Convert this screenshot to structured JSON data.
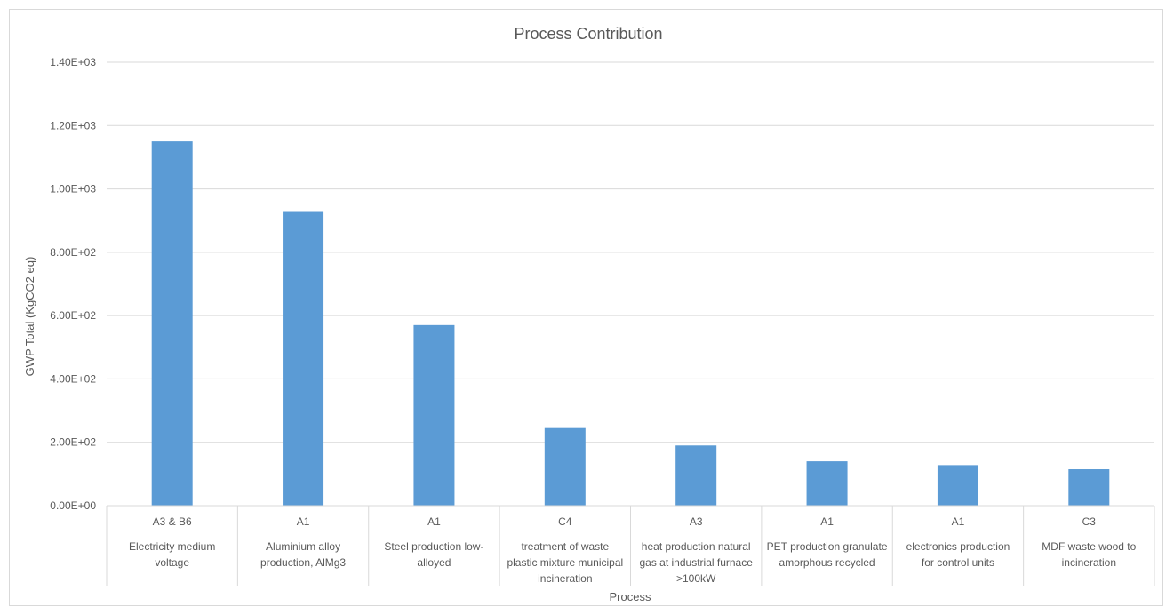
{
  "chart_data": {
    "type": "bar",
    "title": "Process Contribution",
    "xlabel": "Process",
    "ylabel": "GWP Total (KgCO2 eq)",
    "ylim": [
      0,
      1400
    ],
    "yticks": [
      "0.00E+00",
      "2.00E+02",
      "4.00E+02",
      "6.00E+02",
      "8.00E+02",
      "1.00E+03",
      "1.20E+03",
      "1.40E+03"
    ],
    "grid": true,
    "bar_color": "#5b9bd5",
    "categories": [
      {
        "stage": "A3 & B6",
        "name": [
          "Electricity medium",
          "voltage"
        ]
      },
      {
        "stage": "A1",
        "name": [
          "Aluminium alloy",
          "production, AlMg3"
        ]
      },
      {
        "stage": "A1",
        "name": [
          "Steel production low-",
          "alloyed"
        ]
      },
      {
        "stage": "C4",
        "name": [
          "treatment of waste",
          "plastic mixture municipal",
          "incineration"
        ]
      },
      {
        "stage": "A3",
        "name": [
          "heat production natural",
          "gas at industrial furnace",
          ">100kW"
        ]
      },
      {
        "stage": "A1",
        "name": [
          "PET production granulate",
          "amorphous recycled"
        ]
      },
      {
        "stage": "A1",
        "name": [
          "electronics production",
          "for control units"
        ]
      },
      {
        "stage": "C3",
        "name": [
          "MDF waste wood to",
          "incineration"
        ]
      }
    ],
    "values": [
      1150,
      930,
      570,
      245,
      190,
      140,
      128,
      115
    ]
  }
}
